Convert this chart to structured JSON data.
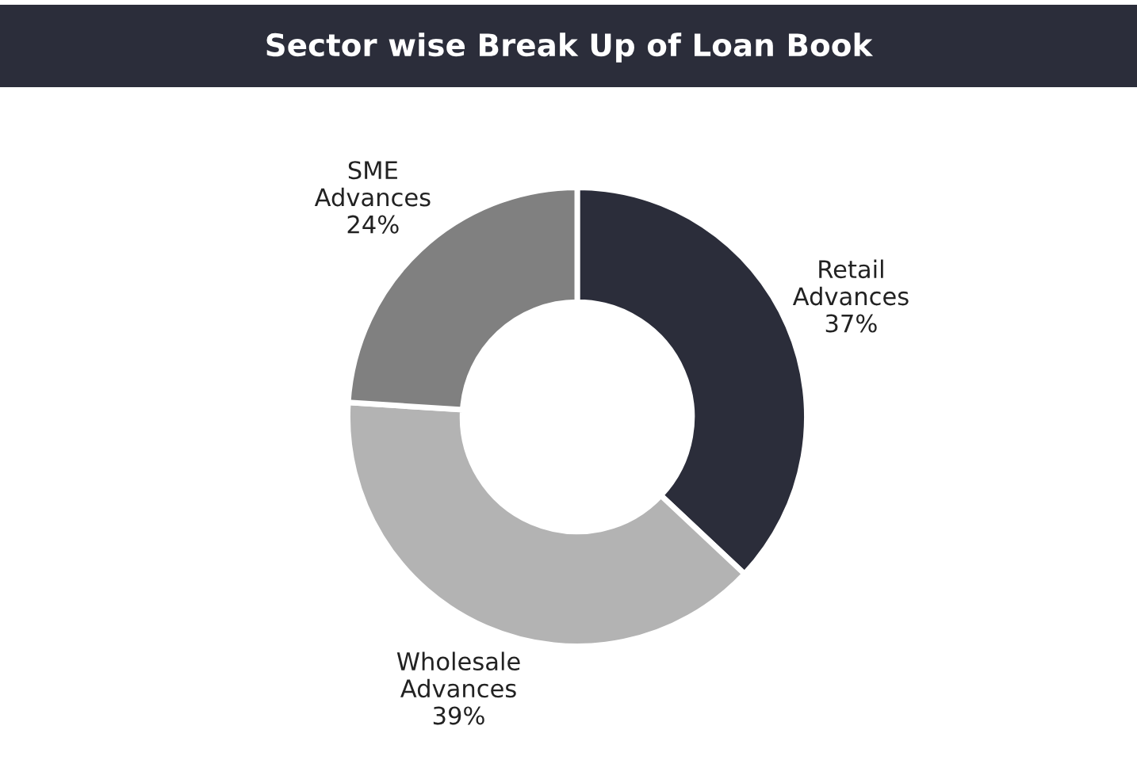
{
  "chart_data": {
    "type": "donut",
    "title": "Sector wise Break Up of Loan Book",
    "categories": [
      "Retail Advances",
      "Wholesale Advances",
      "SME Advances"
    ],
    "values": [
      37,
      39,
      24
    ],
    "value_labels": [
      "37%",
      "39%",
      "24%"
    ],
    "colors": [
      "#2b2d3a",
      "#b3b3b3",
      "#808080"
    ]
  }
}
